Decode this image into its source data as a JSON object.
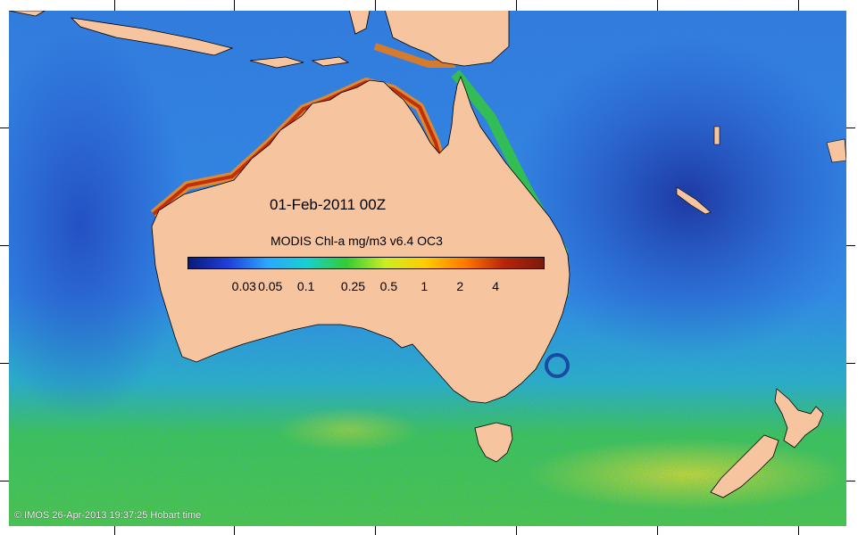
{
  "map": {
    "date_label": "01-Feb-2011 00Z",
    "colorbar": {
      "title": "MODIS Chl-a mg/m3 v6.4 OC3",
      "tick_labels": [
        "0.03",
        "0.05",
        "0.1",
        "0.25",
        "0.5",
        "1",
        "2",
        "4"
      ],
      "tick_values": [
        0.03,
        0.05,
        0.1,
        0.25,
        0.5,
        1,
        2,
        4
      ],
      "range": [
        0.01,
        10
      ],
      "scale": "log",
      "colors": [
        "#0a1a7a",
        "#1f3fd8",
        "#2aa7ff",
        "#18d0d0",
        "#33cc33",
        "#ccee22",
        "#ffcc00",
        "#ff7a00",
        "#b8240a",
        "#7a1a0a"
      ]
    },
    "credit": "© IMOS 26-Apr-2013 19:37:25 Hobart time",
    "colors": {
      "land": "#f7c4a0",
      "ocean_deep": "#1e3fc8",
      "ocean_mid": "#2f8fe8",
      "ocean_south": "#2ccf6a",
      "coastal_high": "#d84a10"
    }
  }
}
